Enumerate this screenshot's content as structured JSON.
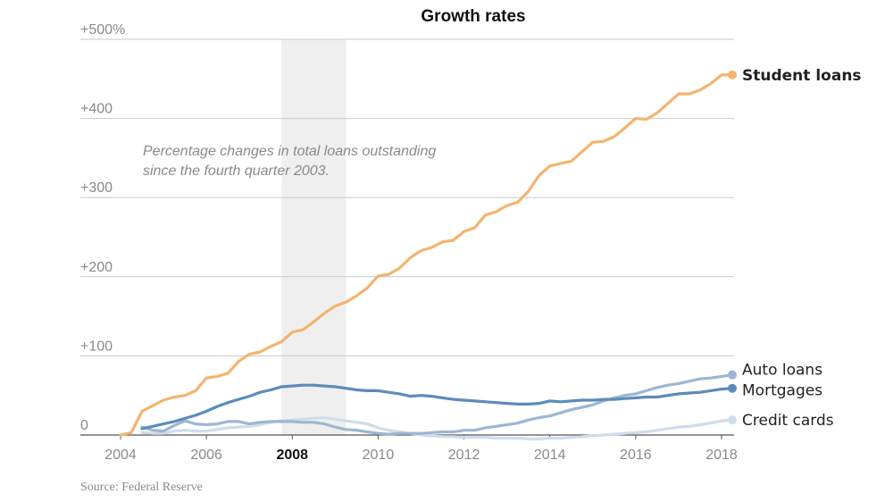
{
  "chart_data": {
    "type": "line",
    "title": "Growth rates",
    "annotation": [
      "Percentage changes in total loans outstanding",
      "since the fourth quarter 2003."
    ],
    "source": "Source: Federal Reserve",
    "xlim": [
      2004,
      2018.3
    ],
    "ylim": [
      0,
      500
    ],
    "ytick_labels": [
      {
        "value": 500,
        "label": "+500%"
      },
      {
        "value": 400,
        "label": "+400"
      },
      {
        "value": 300,
        "label": "+300"
      },
      {
        "value": 200,
        "label": "+200"
      },
      {
        "value": 100,
        "label": "+100"
      },
      {
        "value": 0,
        "label": "0"
      }
    ],
    "xtick_labels": [
      {
        "value": 2004,
        "label": "2004",
        "bold": false
      },
      {
        "value": 2006,
        "label": "2006",
        "bold": false
      },
      {
        "value": 2008,
        "label": "2008",
        "bold": true
      },
      {
        "value": 2010,
        "label": "2010",
        "bold": false
      },
      {
        "value": 2012,
        "label": "2012",
        "bold": false
      },
      {
        "value": 2014,
        "label": "2014",
        "bold": false
      },
      {
        "value": 2016,
        "label": "2016",
        "bold": false
      },
      {
        "value": 2018,
        "label": "2018",
        "bold": false
      }
    ],
    "recession_band": [
      2007.75,
      2009.25
    ],
    "grid": true,
    "series": [
      {
        "name": "Student loans",
        "color": "#f4b46e",
        "label_bold": true,
        "points": [
          [
            2004,
            0
          ],
          [
            2004.25,
            3
          ],
          [
            2004.5,
            30
          ],
          [
            2004.75,
            37
          ],
          [
            2005,
            44
          ],
          [
            2005.25,
            48
          ],
          [
            2005.5,
            50
          ],
          [
            2005.75,
            56
          ],
          [
            2006,
            72
          ],
          [
            2006.25,
            74
          ],
          [
            2006.5,
            78
          ],
          [
            2006.75,
            93
          ],
          [
            2007,
            102
          ],
          [
            2007.25,
            105
          ],
          [
            2007.5,
            112
          ],
          [
            2007.75,
            118
          ],
          [
            2008,
            130
          ],
          [
            2008.25,
            133
          ],
          [
            2008.5,
            143
          ],
          [
            2008.75,
            154
          ],
          [
            2009,
            163
          ],
          [
            2009.25,
            168
          ],
          [
            2009.5,
            176
          ],
          [
            2009.75,
            186
          ],
          [
            2010,
            201
          ],
          [
            2010.25,
            203
          ],
          [
            2010.5,
            211
          ],
          [
            2010.75,
            224
          ],
          [
            2011,
            233
          ],
          [
            2011.25,
            237
          ],
          [
            2011.5,
            244
          ],
          [
            2011.75,
            246
          ],
          [
            2012,
            257
          ],
          [
            2012.25,
            262
          ],
          [
            2012.5,
            278
          ],
          [
            2012.75,
            282
          ],
          [
            2013,
            290
          ],
          [
            2013.25,
            294
          ],
          [
            2013.5,
            308
          ],
          [
            2013.75,
            328
          ],
          [
            2014,
            340
          ],
          [
            2014.25,
            343
          ],
          [
            2014.5,
            346
          ],
          [
            2014.75,
            358
          ],
          [
            2015,
            370
          ],
          [
            2015.25,
            371
          ],
          [
            2015.5,
            377
          ],
          [
            2015.75,
            388
          ],
          [
            2016,
            400
          ],
          [
            2016.25,
            399
          ],
          [
            2016.5,
            407
          ],
          [
            2016.75,
            419
          ],
          [
            2017,
            431
          ],
          [
            2017.25,
            431
          ],
          [
            2017.5,
            436
          ],
          [
            2017.75,
            444
          ],
          [
            2018,
            455
          ],
          [
            2018.25,
            455
          ]
        ]
      },
      {
        "name": "Auto loans",
        "color": "#9cb7d3",
        "label_bold": false,
        "points": [
          [
            2004.5,
            10
          ],
          [
            2004.75,
            6
          ],
          [
            2005,
            5
          ],
          [
            2005.25,
            12
          ],
          [
            2005.5,
            18
          ],
          [
            2005.75,
            14
          ],
          [
            2006,
            13
          ],
          [
            2006.25,
            14
          ],
          [
            2006.5,
            17
          ],
          [
            2006.75,
            17
          ],
          [
            2007,
            14
          ],
          [
            2007.25,
            16
          ],
          [
            2007.5,
            17
          ],
          [
            2007.75,
            17
          ],
          [
            2008,
            17
          ],
          [
            2008.25,
            16
          ],
          [
            2008.5,
            16
          ],
          [
            2008.75,
            14
          ],
          [
            2009,
            10
          ],
          [
            2009.25,
            7
          ],
          [
            2009.5,
            6
          ],
          [
            2009.75,
            4
          ],
          [
            2010,
            2
          ],
          [
            2010.25,
            1
          ],
          [
            2010.5,
            2
          ],
          [
            2010.75,
            2
          ],
          [
            2011,
            2
          ],
          [
            2011.25,
            3
          ],
          [
            2011.5,
            4
          ],
          [
            2011.75,
            4
          ],
          [
            2012,
            6
          ],
          [
            2012.25,
            6
          ],
          [
            2012.5,
            9
          ],
          [
            2012.75,
            11
          ],
          [
            2013,
            13
          ],
          [
            2013.25,
            15
          ],
          [
            2013.5,
            19
          ],
          [
            2013.75,
            22
          ],
          [
            2014,
            24
          ],
          [
            2014.25,
            28
          ],
          [
            2014.5,
            32
          ],
          [
            2014.75,
            35
          ],
          [
            2015,
            38
          ],
          [
            2015.25,
            43
          ],
          [
            2015.5,
            47
          ],
          [
            2015.75,
            50
          ],
          [
            2016,
            52
          ],
          [
            2016.25,
            56
          ],
          [
            2016.5,
            60
          ],
          [
            2016.75,
            63
          ],
          [
            2017,
            65
          ],
          [
            2017.25,
            68
          ],
          [
            2017.5,
            71
          ],
          [
            2017.75,
            72
          ],
          [
            2018,
            74
          ],
          [
            2018.25,
            76
          ]
        ]
      },
      {
        "name": "Mortgages",
        "color": "#5b8cba",
        "label_bold": false,
        "points": [
          [
            2004.5,
            8
          ],
          [
            2004.75,
            11
          ],
          [
            2005,
            14
          ],
          [
            2005.25,
            17
          ],
          [
            2005.5,
            21
          ],
          [
            2005.75,
            25
          ],
          [
            2006,
            30
          ],
          [
            2006.25,
            36
          ],
          [
            2006.5,
            41
          ],
          [
            2006.75,
            45
          ],
          [
            2007,
            49
          ],
          [
            2007.25,
            54
          ],
          [
            2007.5,
            57
          ],
          [
            2007.75,
            61
          ],
          [
            2008,
            62
          ],
          [
            2008.25,
            63
          ],
          [
            2008.5,
            63
          ],
          [
            2008.75,
            62
          ],
          [
            2009,
            61
          ],
          [
            2009.25,
            59
          ],
          [
            2009.5,
            57
          ],
          [
            2009.75,
            56
          ],
          [
            2010,
            56
          ],
          [
            2010.25,
            54
          ],
          [
            2010.5,
            52
          ],
          [
            2010.75,
            49
          ],
          [
            2011,
            50
          ],
          [
            2011.25,
            49
          ],
          [
            2011.5,
            47
          ],
          [
            2011.75,
            45
          ],
          [
            2012,
            44
          ],
          [
            2012.25,
            43
          ],
          [
            2012.5,
            42
          ],
          [
            2012.75,
            41
          ],
          [
            2013,
            40
          ],
          [
            2013.25,
            39
          ],
          [
            2013.5,
            39
          ],
          [
            2013.75,
            40
          ],
          [
            2014,
            43
          ],
          [
            2014.25,
            42
          ],
          [
            2014.5,
            43
          ],
          [
            2014.75,
            44
          ],
          [
            2015,
            44
          ],
          [
            2015.25,
            45
          ],
          [
            2015.5,
            45
          ],
          [
            2015.75,
            46
          ],
          [
            2016,
            47
          ],
          [
            2016.25,
            48
          ],
          [
            2016.5,
            48
          ],
          [
            2016.75,
            50
          ],
          [
            2017,
            52
          ],
          [
            2017.25,
            53
          ],
          [
            2017.5,
            54
          ],
          [
            2017.75,
            56
          ],
          [
            2018,
            58
          ],
          [
            2018.25,
            59
          ]
        ]
      },
      {
        "name": "Credit cards",
        "color": "#cfdcec",
        "label_bold": false,
        "points": [
          [
            2004.5,
            3
          ],
          [
            2004.75,
            2
          ],
          [
            2005,
            2
          ],
          [
            2005.25,
            5
          ],
          [
            2005.5,
            6
          ],
          [
            2005.75,
            5
          ],
          [
            2006,
            5
          ],
          [
            2006.25,
            7
          ],
          [
            2006.5,
            9
          ],
          [
            2006.75,
            10
          ],
          [
            2007,
            11
          ],
          [
            2007.25,
            13
          ],
          [
            2007.5,
            16
          ],
          [
            2007.75,
            18
          ],
          [
            2008,
            19
          ],
          [
            2008.25,
            20
          ],
          [
            2008.5,
            21
          ],
          [
            2008.75,
            22
          ],
          [
            2009,
            20
          ],
          [
            2009.25,
            18
          ],
          [
            2009.5,
            16
          ],
          [
            2009.75,
            14
          ],
          [
            2010,
            9
          ],
          [
            2010.25,
            6
          ],
          [
            2010.5,
            4
          ],
          [
            2010.75,
            2
          ],
          [
            2011,
            0
          ],
          [
            2011.25,
            -1
          ],
          [
            2011.5,
            -2
          ],
          [
            2011.75,
            -2
          ],
          [
            2012,
            -3
          ],
          [
            2012.25,
            -3
          ],
          [
            2012.5,
            -3
          ],
          [
            2012.75,
            -4
          ],
          [
            2013,
            -4
          ],
          [
            2013.25,
            -4
          ],
          [
            2013.5,
            -5
          ],
          [
            2013.75,
            -5
          ],
          [
            2014,
            -4
          ],
          [
            2014.25,
            -4
          ],
          [
            2014.5,
            -3
          ],
          [
            2014.75,
            -2
          ],
          [
            2015,
            -1
          ],
          [
            2015.25,
            0
          ],
          [
            2015.5,
            1
          ],
          [
            2015.75,
            2
          ],
          [
            2016,
            3
          ],
          [
            2016.25,
            4
          ],
          [
            2016.5,
            6
          ],
          [
            2016.75,
            8
          ],
          [
            2017,
            10
          ],
          [
            2017.25,
            11
          ],
          [
            2017.5,
            13
          ],
          [
            2017.75,
            15
          ],
          [
            2018,
            18
          ],
          [
            2018.25,
            19
          ]
        ]
      }
    ]
  }
}
